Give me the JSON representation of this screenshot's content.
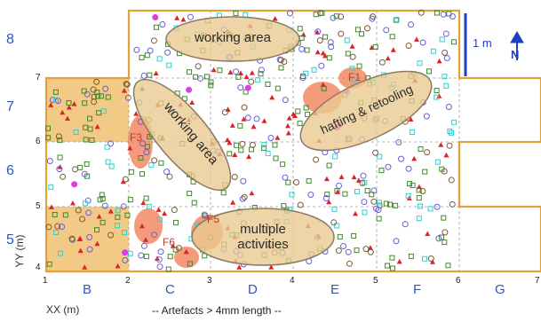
{
  "labels": {
    "rows": [
      "8",
      "7",
      "6",
      "5"
    ],
    "columns": [
      "B",
      "C",
      "D",
      "E",
      "F",
      "G"
    ],
    "x_ticks": [
      "1",
      "2",
      "3",
      "4",
      "5",
      "6",
      "7"
    ],
    "y_ticks": [
      "7",
      "6",
      "5",
      "4"
    ],
    "x_axis_title": "XX (m)",
    "y_axis_title": "YY (m)",
    "footer": "-- Artefacts > 4mm length --",
    "scale_bar": "1 m",
    "north_arrow": "N"
  },
  "areas": {
    "working_area_top": "working area",
    "working_area_left": "working area",
    "hafting_retooling": "hafting & retooling",
    "multiple_activities_line1": "multiple",
    "multiple_activities_line2": "activities"
  },
  "hearths": [
    "F1",
    "F3",
    "F5",
    "F6"
  ],
  "icons": {
    "north": "north-arrow-icon"
  },
  "colors": {
    "grid_outline": "#e2a23a",
    "shaded_cell": "#f2c985",
    "label_blue": "#2f57b6",
    "ellipse_fill": "#e9c98f",
    "hearth": "#f07a4e",
    "red_triangle": "#d9242b",
    "green_square": "#3f8a2e",
    "blue_circle": "#6a5ed8",
    "cyan_square": "#2fd0cf",
    "brown_circle": "#7c5a33",
    "magenta": "#e03be6"
  }
}
